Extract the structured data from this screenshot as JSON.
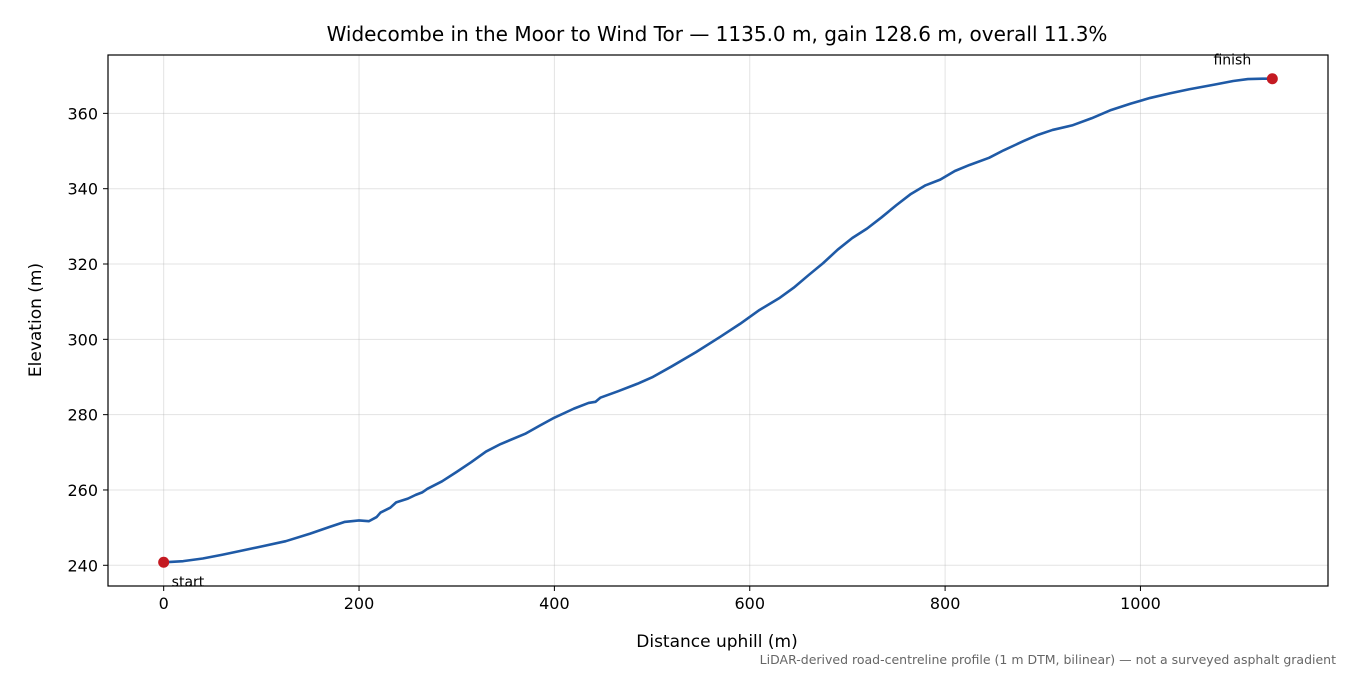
{
  "chart_data": {
    "type": "line",
    "title": "Widecombe in the Moor to Wind Tor — 1135.0 m, gain 128.6 m, overall 11.3%",
    "xlabel": "Distance uphill (m)",
    "ylabel": "Elevation (m)",
    "xlim": [
      -57,
      1192
    ],
    "ylim": [
      234.5,
      375.5
    ],
    "xticks": [
      0,
      200,
      400,
      600,
      800,
      1000
    ],
    "yticks": [
      240,
      260,
      280,
      300,
      320,
      340,
      360
    ],
    "grid": true,
    "footnote": "LiDAR-derived road-centreline profile (1 m DTM, bilinear) — not a surveyed asphalt gradient",
    "series": [
      {
        "name": "",
        "color": "#1f5aa6",
        "points": [
          [
            0,
            240.8
          ],
          [
            20,
            241.1
          ],
          [
            40,
            241.8
          ],
          [
            60,
            242.8
          ],
          [
            80,
            243.9
          ],
          [
            100,
            245.0
          ],
          [
            125,
            246.4
          ],
          [
            150,
            248.4
          ],
          [
            170,
            250.2
          ],
          [
            185,
            251.5
          ],
          [
            200,
            251.9
          ],
          [
            210,
            251.7
          ],
          [
            218,
            252.8
          ],
          [
            222,
            254.0
          ],
          [
            232,
            255.3
          ],
          [
            238,
            256.7
          ],
          [
            250,
            257.7
          ],
          [
            258,
            258.7
          ],
          [
            265,
            259.4
          ],
          [
            270,
            260.3
          ],
          [
            285,
            262.3
          ],
          [
            300,
            264.8
          ],
          [
            315,
            267.4
          ],
          [
            330,
            270.2
          ],
          [
            345,
            272.2
          ],
          [
            370,
            274.9
          ],
          [
            385,
            277.1
          ],
          [
            400,
            279.2
          ],
          [
            420,
            281.6
          ],
          [
            435,
            283.1
          ],
          [
            442,
            283.4
          ],
          [
            447,
            284.5
          ],
          [
            465,
            286.2
          ],
          [
            485,
            288.2
          ],
          [
            500,
            289.9
          ],
          [
            520,
            292.8
          ],
          [
            545,
            296.6
          ],
          [
            570,
            300.7
          ],
          [
            590,
            304.1
          ],
          [
            610,
            307.8
          ],
          [
            630,
            310.9
          ],
          [
            645,
            313.7
          ],
          [
            660,
            317.0
          ],
          [
            675,
            320.2
          ],
          [
            690,
            323.8
          ],
          [
            705,
            326.9
          ],
          [
            720,
            329.4
          ],
          [
            735,
            332.4
          ],
          [
            750,
            335.6
          ],
          [
            765,
            338.6
          ],
          [
            780,
            340.9
          ],
          [
            795,
            342.4
          ],
          [
            810,
            344.7
          ],
          [
            825,
            346.3
          ],
          [
            845,
            348.2
          ],
          [
            860,
            350.2
          ],
          [
            880,
            352.6
          ],
          [
            895,
            354.3
          ],
          [
            910,
            355.6
          ],
          [
            930,
            356.8
          ],
          [
            950,
            358.7
          ],
          [
            970,
            360.9
          ],
          [
            990,
            362.6
          ],
          [
            1010,
            364.1
          ],
          [
            1030,
            365.3
          ],
          [
            1050,
            366.4
          ],
          [
            1075,
            367.6
          ],
          [
            1095,
            368.6
          ],
          [
            1110,
            369.1
          ],
          [
            1125,
            369.2
          ],
          [
            1135,
            369.2
          ]
        ]
      }
    ],
    "markers": [
      {
        "label": "start",
        "x": 0,
        "y": 240.8,
        "color": "#c41a22"
      },
      {
        "label": "finish",
        "x": 1135,
        "y": 369.2,
        "color": "#c41a22"
      }
    ]
  }
}
